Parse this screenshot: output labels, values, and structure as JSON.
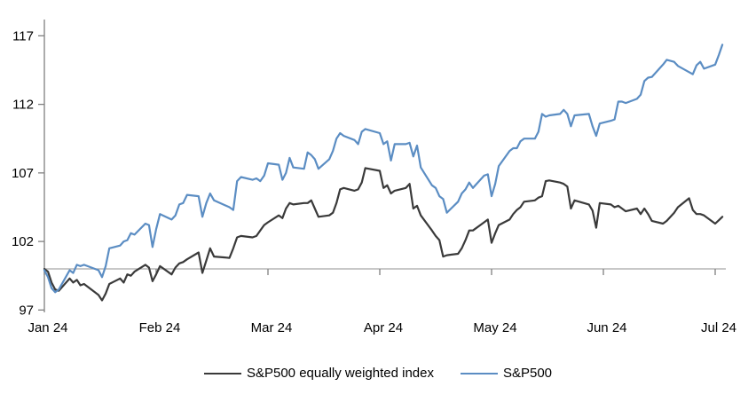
{
  "page": {
    "background": "#ffffff"
  },
  "chart_data": {
    "type": "line",
    "title": "",
    "xlabel": "",
    "ylabel": "",
    "x_tick_labels": [
      "Jan 24",
      "Feb 24",
      "Mar 24",
      "Apr 24",
      "May 24",
      "Jun 24",
      "Jul 24"
    ],
    "y_tick_values": [
      97,
      102,
      107,
      112,
      117
    ],
    "ylim": [
      97,
      118
    ],
    "y_baseline": 100,
    "grid": "off",
    "legend_position": "bottom-center",
    "axis_color": "#808080",
    "baseline_color": "#a6a6a6",
    "text_color": "#000000",
    "days_in_month": [
      31,
      29,
      31,
      30,
      31,
      30,
      31
    ],
    "series": [
      {
        "name": "S&P500 equally weighted index",
        "color": "#3a3a3a",
        "points": [
          [
            0,
            1,
            100.0
          ],
          [
            0,
            2,
            99.8
          ],
          [
            0,
            3,
            99.0
          ],
          [
            0,
            4,
            98.5
          ],
          [
            0,
            5,
            98.4
          ],
          [
            0,
            8,
            99.3
          ],
          [
            0,
            9,
            99.0
          ],
          [
            0,
            10,
            99.2
          ],
          [
            0,
            11,
            98.8
          ],
          [
            0,
            12,
            98.9
          ],
          [
            0,
            16,
            98.1
          ],
          [
            0,
            17,
            97.7
          ],
          [
            0,
            18,
            98.2
          ],
          [
            0,
            19,
            98.9
          ],
          [
            0,
            22,
            99.3
          ],
          [
            0,
            23,
            99.0
          ],
          [
            0,
            24,
            99.6
          ],
          [
            0,
            25,
            99.5
          ],
          [
            0,
            26,
            99.8
          ],
          [
            0,
            29,
            100.3
          ],
          [
            0,
            30,
            100.1
          ],
          [
            0,
            31,
            99.1
          ],
          [
            1,
            1,
            99.6
          ],
          [
            1,
            2,
            100.2
          ],
          [
            1,
            5,
            99.6
          ],
          [
            1,
            6,
            100.1
          ],
          [
            1,
            7,
            100.4
          ],
          [
            1,
            8,
            100.5
          ],
          [
            1,
            9,
            100.7
          ],
          [
            1,
            12,
            101.2
          ],
          [
            1,
            13,
            99.7
          ],
          [
            1,
            14,
            100.6
          ],
          [
            1,
            15,
            101.5
          ],
          [
            1,
            16,
            100.9
          ],
          [
            1,
            20,
            100.8
          ],
          [
            1,
            21,
            101.5
          ],
          [
            1,
            22,
            102.3
          ],
          [
            1,
            23,
            102.4
          ],
          [
            1,
            26,
            102.3
          ],
          [
            1,
            27,
            102.4
          ],
          [
            1,
            28,
            102.8
          ],
          [
            1,
            29,
            103.2
          ],
          [
            2,
            1,
            103.4
          ],
          [
            2,
            4,
            103.9
          ],
          [
            2,
            5,
            103.7
          ],
          [
            2,
            6,
            104.4
          ],
          [
            2,
            7,
            104.8
          ],
          [
            2,
            8,
            104.7
          ],
          [
            2,
            11,
            104.8
          ],
          [
            2,
            12,
            104.8
          ],
          [
            2,
            13,
            105.0
          ],
          [
            2,
            14,
            104.4
          ],
          [
            2,
            15,
            103.8
          ],
          [
            2,
            18,
            103.9
          ],
          [
            2,
            19,
            104.1
          ],
          [
            2,
            20,
            104.8
          ],
          [
            2,
            21,
            105.8
          ],
          [
            2,
            22,
            105.9
          ],
          [
            2,
            25,
            105.7
          ],
          [
            2,
            26,
            105.8
          ],
          [
            2,
            27,
            106.3
          ],
          [
            2,
            28,
            107.35
          ],
          [
            3,
            1,
            107.15
          ],
          [
            3,
            2,
            105.9
          ],
          [
            3,
            3,
            106.1
          ],
          [
            3,
            4,
            105.5
          ],
          [
            3,
            5,
            105.7
          ],
          [
            3,
            8,
            105.9
          ],
          [
            3,
            9,
            106.2
          ],
          [
            3,
            10,
            104.4
          ],
          [
            3,
            11,
            104.6
          ],
          [
            3,
            12,
            103.9
          ],
          [
            3,
            15,
            102.8
          ],
          [
            3,
            16,
            102.4
          ],
          [
            3,
            17,
            102.1
          ],
          [
            3,
            18,
            100.9
          ],
          [
            3,
            19,
            101.0
          ],
          [
            3,
            22,
            101.1
          ],
          [
            3,
            23,
            101.5
          ],
          [
            3,
            24,
            102.1
          ],
          [
            3,
            25,
            102.8
          ],
          [
            3,
            26,
            102.8
          ],
          [
            3,
            29,
            103.4
          ],
          [
            3,
            30,
            103.6
          ],
          [
            4,
            1,
            101.9
          ],
          [
            4,
            2,
            102.6
          ],
          [
            4,
            3,
            103.2
          ],
          [
            4,
            6,
            103.6
          ],
          [
            4,
            7,
            104.0
          ],
          [
            4,
            8,
            104.3
          ],
          [
            4,
            9,
            104.5
          ],
          [
            4,
            10,
            104.9
          ],
          [
            4,
            13,
            105.0
          ],
          [
            4,
            14,
            105.2
          ],
          [
            4,
            15,
            105.3
          ],
          [
            4,
            16,
            106.4
          ],
          [
            4,
            17,
            106.45
          ],
          [
            4,
            20,
            106.3
          ],
          [
            4,
            21,
            106.2
          ],
          [
            4,
            22,
            106.0
          ],
          [
            4,
            23,
            104.4
          ],
          [
            4,
            24,
            105.0
          ],
          [
            4,
            28,
            104.7
          ],
          [
            4,
            29,
            104.25
          ],
          [
            4,
            30,
            103.0
          ],
          [
            4,
            31,
            104.8
          ],
          [
            5,
            3,
            104.7
          ],
          [
            5,
            4,
            104.5
          ],
          [
            5,
            5,
            104.6
          ],
          [
            5,
            6,
            104.4
          ],
          [
            5,
            7,
            104.2
          ],
          [
            5,
            10,
            104.4
          ],
          [
            5,
            11,
            104.0
          ],
          [
            5,
            12,
            104.4
          ],
          [
            5,
            13,
            104.0
          ],
          [
            5,
            14,
            103.5
          ],
          [
            5,
            17,
            103.3
          ],
          [
            5,
            18,
            103.5
          ],
          [
            5,
            20,
            104.1
          ],
          [
            5,
            21,
            104.5
          ],
          [
            5,
            24,
            105.15
          ],
          [
            5,
            25,
            104.3
          ],
          [
            5,
            26,
            104.0
          ],
          [
            5,
            27,
            104.0
          ],
          [
            5,
            28,
            103.9
          ],
          [
            6,
            1,
            103.3
          ],
          [
            6,
            2,
            103.55
          ],
          [
            6,
            3,
            103.8
          ]
        ]
      },
      {
        "name": "S&P500",
        "color": "#5b8dc3",
        "points": [
          [
            0,
            1,
            99.9
          ],
          [
            0,
            2,
            99.4
          ],
          [
            0,
            3,
            98.6
          ],
          [
            0,
            4,
            98.3
          ],
          [
            0,
            5,
            98.5
          ],
          [
            0,
            8,
            99.9
          ],
          [
            0,
            9,
            99.7
          ],
          [
            0,
            10,
            100.3
          ],
          [
            0,
            11,
            100.2
          ],
          [
            0,
            12,
            100.3
          ],
          [
            0,
            16,
            99.9
          ],
          [
            0,
            17,
            99.4
          ],
          [
            0,
            18,
            100.2
          ],
          [
            0,
            19,
            101.5
          ],
          [
            0,
            22,
            101.7
          ],
          [
            0,
            23,
            102.0
          ],
          [
            0,
            24,
            102.1
          ],
          [
            0,
            25,
            102.6
          ],
          [
            0,
            26,
            102.5
          ],
          [
            0,
            29,
            103.3
          ],
          [
            0,
            30,
            103.2
          ],
          [
            0,
            31,
            101.6
          ],
          [
            1,
            1,
            102.9
          ],
          [
            1,
            2,
            104.0
          ],
          [
            1,
            5,
            103.6
          ],
          [
            1,
            6,
            103.9
          ],
          [
            1,
            7,
            104.7
          ],
          [
            1,
            8,
            104.8
          ],
          [
            1,
            9,
            105.4
          ],
          [
            1,
            12,
            105.3
          ],
          [
            1,
            13,
            103.8
          ],
          [
            1,
            14,
            104.8
          ],
          [
            1,
            15,
            105.5
          ],
          [
            1,
            16,
            105.0
          ],
          [
            1,
            20,
            104.5
          ],
          [
            1,
            21,
            104.3
          ],
          [
            1,
            22,
            106.4
          ],
          [
            1,
            23,
            106.7
          ],
          [
            1,
            26,
            106.5
          ],
          [
            1,
            27,
            106.6
          ],
          [
            1,
            28,
            106.4
          ],
          [
            1,
            29,
            106.8
          ],
          [
            2,
            1,
            107.7
          ],
          [
            2,
            4,
            107.6
          ],
          [
            2,
            5,
            106.5
          ],
          [
            2,
            6,
            107.0
          ],
          [
            2,
            7,
            108.1
          ],
          [
            2,
            8,
            107.4
          ],
          [
            2,
            11,
            107.3
          ],
          [
            2,
            12,
            108.5
          ],
          [
            2,
            13,
            108.3
          ],
          [
            2,
            14,
            108.0
          ],
          [
            2,
            15,
            107.3
          ],
          [
            2,
            18,
            108.0
          ],
          [
            2,
            19,
            108.6
          ],
          [
            2,
            20,
            109.5
          ],
          [
            2,
            21,
            109.9
          ],
          [
            2,
            22,
            109.7
          ],
          [
            2,
            25,
            109.4
          ],
          [
            2,
            26,
            109.1
          ],
          [
            2,
            27,
            110.0
          ],
          [
            2,
            28,
            110.2
          ],
          [
            3,
            1,
            109.9
          ],
          [
            3,
            2,
            109.1
          ],
          [
            3,
            3,
            109.3
          ],
          [
            3,
            4,
            107.9
          ],
          [
            3,
            5,
            109.1
          ],
          [
            3,
            8,
            109.1
          ],
          [
            3,
            9,
            109.2
          ],
          [
            3,
            10,
            108.2
          ],
          [
            3,
            11,
            109.0
          ],
          [
            3,
            12,
            107.4
          ],
          [
            3,
            15,
            106.1
          ],
          [
            3,
            16,
            105.9
          ],
          [
            3,
            17,
            105.3
          ],
          [
            3,
            18,
            105.1
          ],
          [
            3,
            19,
            104.1
          ],
          [
            3,
            22,
            104.9
          ],
          [
            3,
            23,
            105.5
          ],
          [
            3,
            24,
            105.8
          ],
          [
            3,
            25,
            106.3
          ],
          [
            3,
            26,
            105.9
          ],
          [
            3,
            29,
            106.8
          ],
          [
            3,
            30,
            106.9
          ],
          [
            4,
            1,
            105.3
          ],
          [
            4,
            2,
            106.2
          ],
          [
            4,
            3,
            107.5
          ],
          [
            4,
            6,
            108.6
          ],
          [
            4,
            7,
            108.8
          ],
          [
            4,
            8,
            108.8
          ],
          [
            4,
            9,
            109.3
          ],
          [
            4,
            10,
            109.5
          ],
          [
            4,
            13,
            109.5
          ],
          [
            4,
            14,
            110.0
          ],
          [
            4,
            15,
            111.3
          ],
          [
            4,
            16,
            111.1
          ],
          [
            4,
            17,
            111.2
          ],
          [
            4,
            20,
            111.3
          ],
          [
            4,
            21,
            111.6
          ],
          [
            4,
            22,
            111.3
          ],
          [
            4,
            23,
            110.4
          ],
          [
            4,
            24,
            111.2
          ],
          [
            4,
            28,
            111.3
          ],
          [
            4,
            29,
            110.4
          ],
          [
            4,
            30,
            109.7
          ],
          [
            4,
            31,
            110.6
          ],
          [
            5,
            3,
            110.8
          ],
          [
            5,
            4,
            110.9
          ],
          [
            5,
            5,
            112.2
          ],
          [
            5,
            6,
            112.2
          ],
          [
            5,
            7,
            112.1
          ],
          [
            5,
            10,
            112.4
          ],
          [
            5,
            11,
            112.7
          ],
          [
            5,
            12,
            113.7
          ],
          [
            5,
            13,
            113.95
          ],
          [
            5,
            14,
            114.0
          ],
          [
            5,
            17,
            114.9
          ],
          [
            5,
            18,
            115.25
          ],
          [
            5,
            20,
            115.1
          ],
          [
            5,
            21,
            114.8
          ],
          [
            5,
            24,
            114.35
          ],
          [
            5,
            25,
            114.2
          ],
          [
            5,
            26,
            114.85
          ],
          [
            5,
            27,
            115.1
          ],
          [
            5,
            28,
            114.6
          ],
          [
            6,
            1,
            114.9
          ],
          [
            6,
            2,
            115.6
          ],
          [
            6,
            3,
            116.35
          ]
        ]
      }
    ],
    "legend": {
      "items": [
        {
          "label": "S&P500 equally weighted index",
          "color": "#3a3a3a"
        },
        {
          "label": "S&P500",
          "color": "#5b8dc3"
        }
      ]
    }
  }
}
